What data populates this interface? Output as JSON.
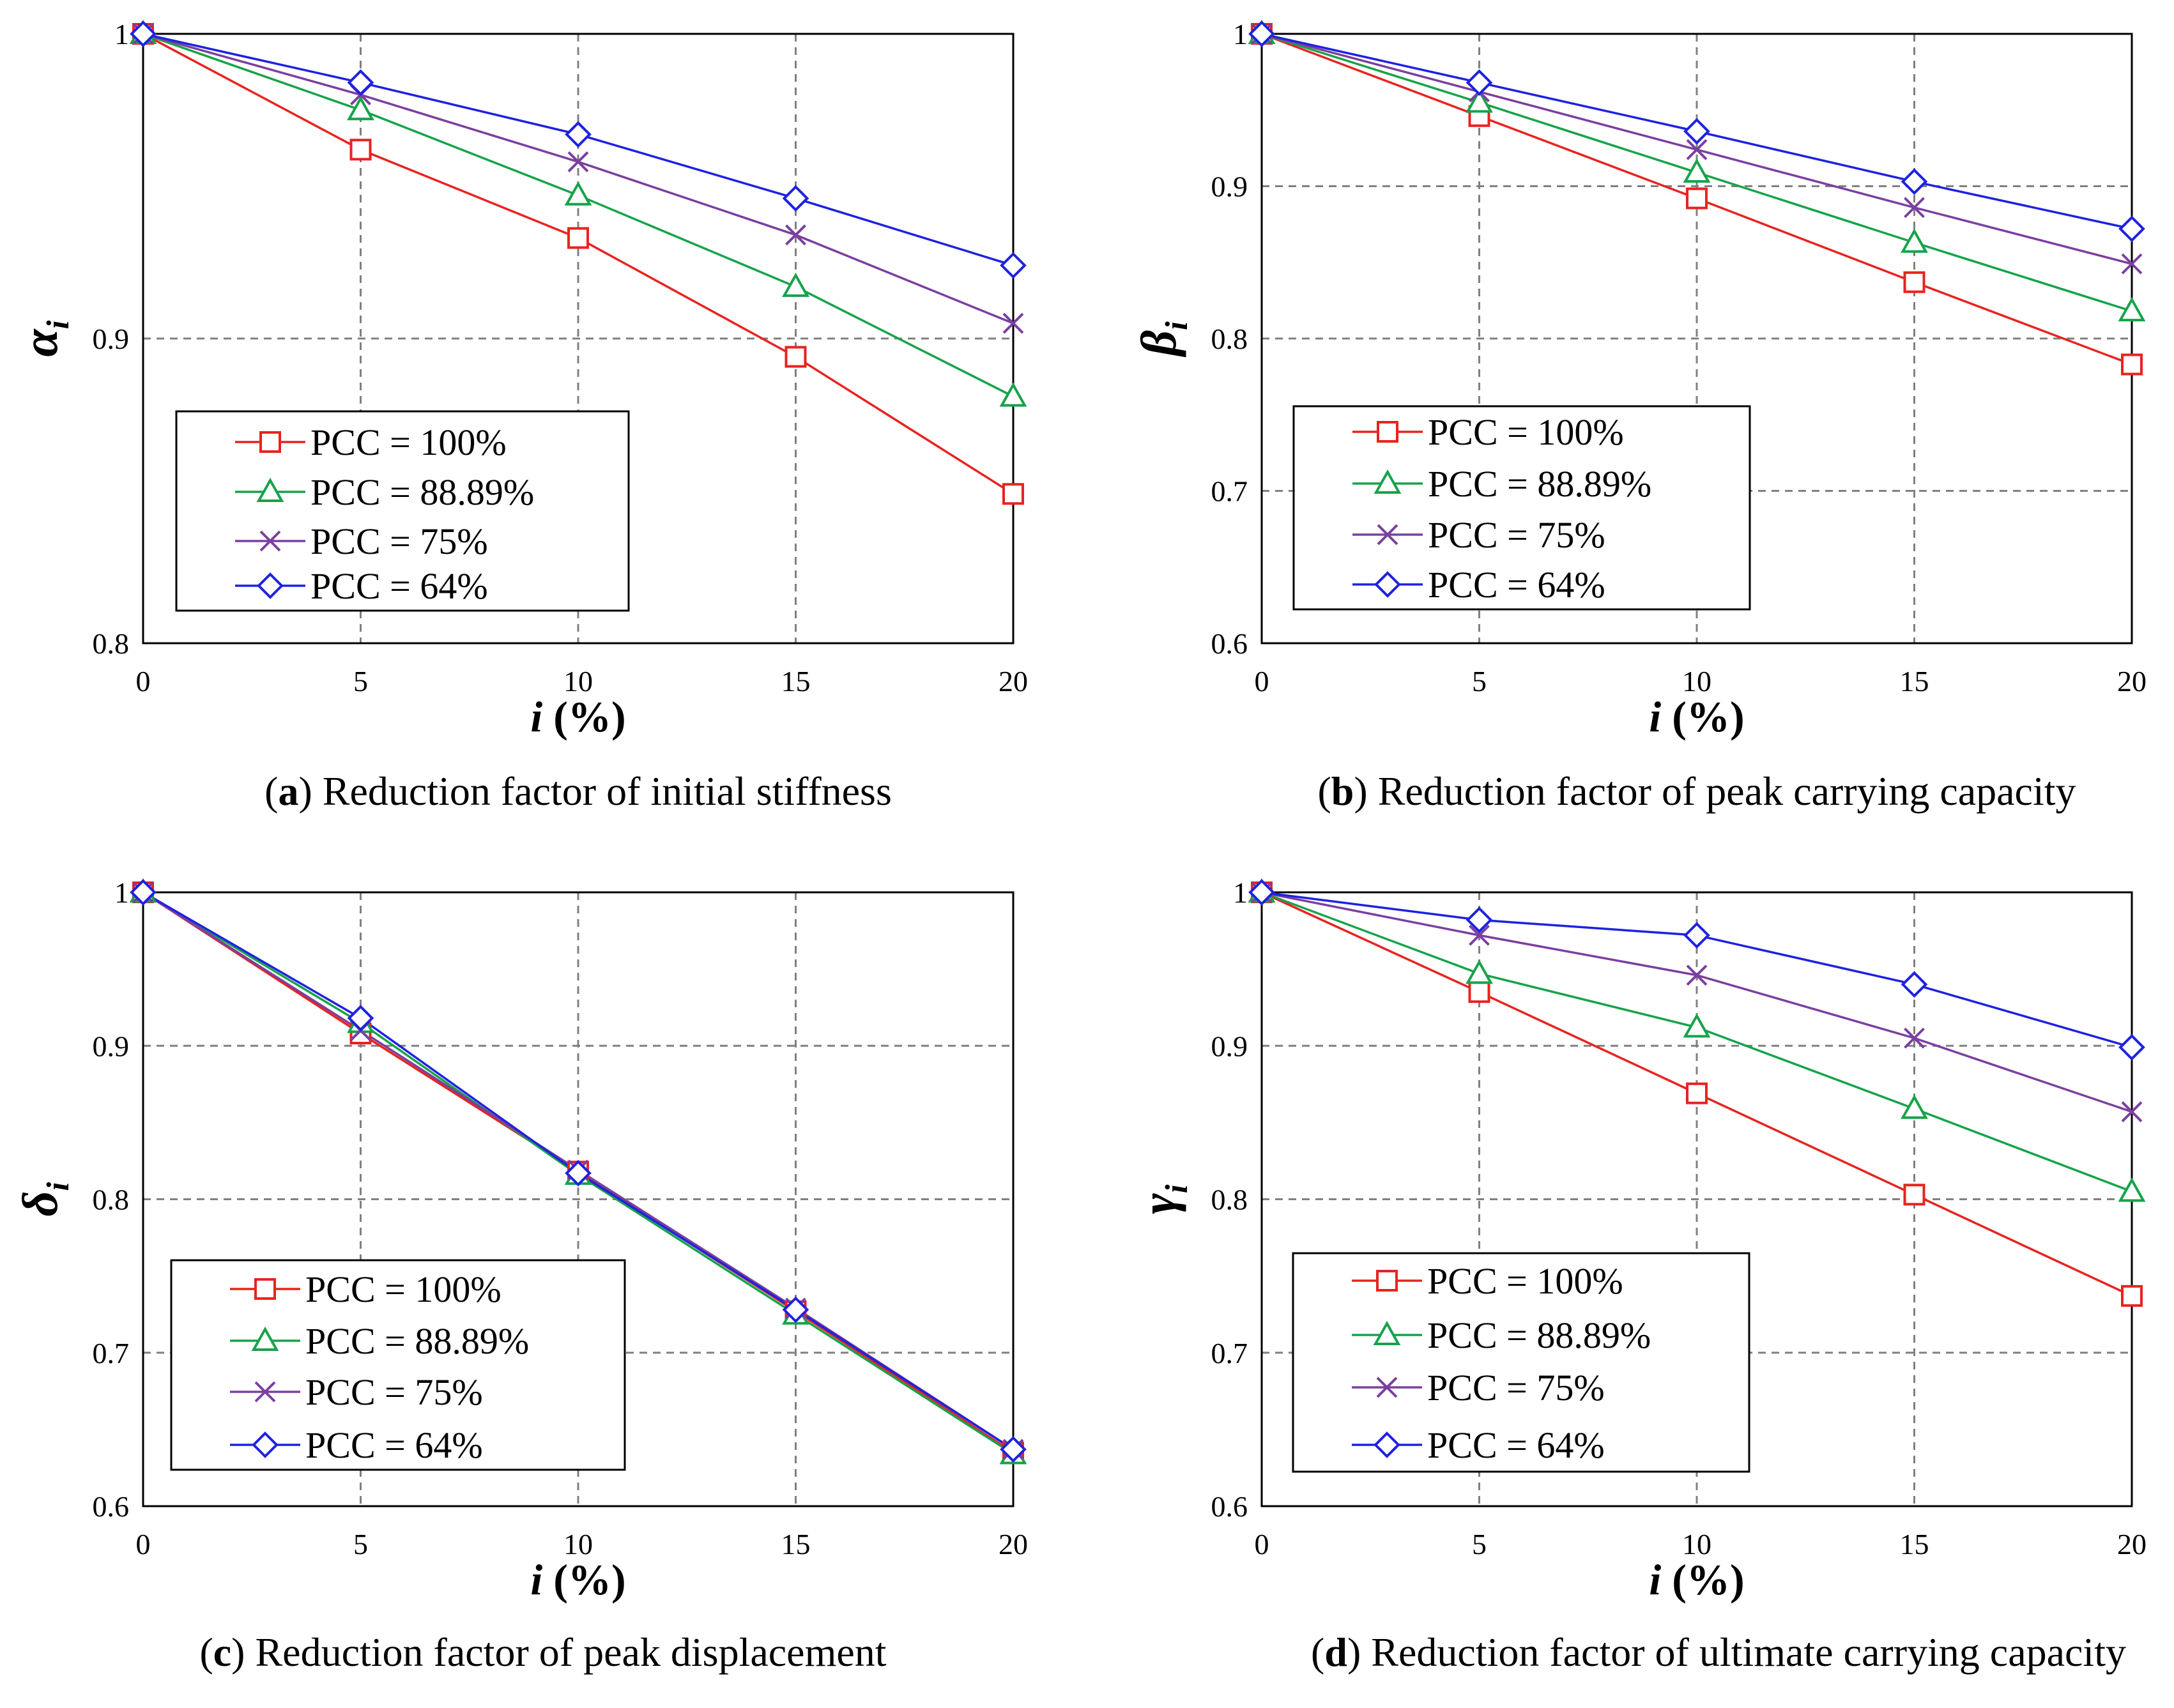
{
  "chart_data": [
    {
      "type": "line",
      "panel": "a",
      "caption_letter": "a",
      "caption_text": " Reduction factor of initial stiffness",
      "ylabel_symbol": "α",
      "ylabel_sub": "i",
      "xlabel_var": "i",
      "xlabel_unit": " (%)",
      "x": [
        0,
        5,
        10,
        15,
        20
      ],
      "xlim": [
        0,
        20
      ],
      "ylim": [
        0.8,
        1.0
      ],
      "x_ticks": [
        "0",
        "5",
        "10",
        "15",
        "20"
      ],
      "y_ticks": [
        {
          "value": 0.8,
          "label": "0.8"
        },
        {
          "value": 0.9,
          "label": "0.9"
        },
        {
          "value": 1.0,
          "label": "1"
        }
      ],
      "series": [
        {
          "name": "PCC = 100%",
          "color": "#e8231f",
          "marker": "square",
          "values": [
            1.0,
            0.962,
            0.933,
            0.894,
            0.849
          ]
        },
        {
          "name": "PCC = 88.89%",
          "color": "#16a34a",
          "marker": "triangle",
          "values": [
            1.0,
            0.975,
            0.947,
            0.917,
            0.881
          ]
        },
        {
          "name": "PCC = 75%",
          "color": "#7b3fa0",
          "marker": "cross",
          "values": [
            1.0,
            0.98,
            0.958,
            0.934,
            0.905
          ]
        },
        {
          "name": "PCC = 64%",
          "color": "#1e22e0",
          "marker": "diamond",
          "values": [
            1.0,
            0.984,
            0.967,
            0.946,
            0.924
          ]
        }
      ]
    },
    {
      "type": "line",
      "panel": "b",
      "caption_letter": "b",
      "caption_text": " Reduction factor of peak carrying capacity",
      "ylabel_symbol": "β",
      "ylabel_sub": "i",
      "xlabel_var": "i",
      "xlabel_unit": " (%)",
      "x": [
        0,
        5,
        10,
        15,
        20
      ],
      "xlim": [
        0,
        20
      ],
      "ylim": [
        0.6,
        1.0
      ],
      "x_ticks": [
        "0",
        "5",
        "10",
        "15",
        "20"
      ],
      "y_ticks": [
        {
          "value": 0.6,
          "label": "0.6"
        },
        {
          "value": 0.7,
          "label": "0.7"
        },
        {
          "value": 0.8,
          "label": "0.8"
        },
        {
          "value": 0.9,
          "label": "0.9"
        },
        {
          "value": 1.0,
          "label": "1"
        }
      ],
      "series": [
        {
          "name": "PCC = 100%",
          "color": "#e8231f",
          "marker": "square",
          "values": [
            1.0,
            0.946,
            0.892,
            0.837,
            0.783
          ]
        },
        {
          "name": "PCC = 88.89%",
          "color": "#16a34a",
          "marker": "triangle",
          "values": [
            1.0,
            0.955,
            0.909,
            0.863,
            0.818
          ]
        },
        {
          "name": "PCC = 75%",
          "color": "#7b3fa0",
          "marker": "cross",
          "values": [
            1.0,
            0.962,
            0.924,
            0.886,
            0.849
          ]
        },
        {
          "name": "PCC = 64%",
          "color": "#1e22e0",
          "marker": "diamond",
          "values": [
            1.0,
            0.968,
            0.936,
            0.903,
            0.872
          ]
        }
      ]
    },
    {
      "type": "line",
      "panel": "c",
      "caption_letter": "c",
      "caption_text": " Reduction factor of peak displacement",
      "ylabel_symbol": "δ",
      "ylabel_sub": "i",
      "xlabel_var": "i",
      "xlabel_unit": " (%)",
      "x": [
        0,
        5,
        10,
        15,
        20
      ],
      "xlim": [
        0,
        20
      ],
      "ylim": [
        0.6,
        1.0
      ],
      "x_ticks": [
        "0",
        "5",
        "10",
        "15",
        "20"
      ],
      "y_ticks": [
        {
          "value": 0.6,
          "label": "0.6"
        },
        {
          "value": 0.7,
          "label": "0.7"
        },
        {
          "value": 0.8,
          "label": "0.8"
        },
        {
          "value": 0.9,
          "label": "0.9"
        },
        {
          "value": 1.0,
          "label": "1"
        }
      ],
      "series": [
        {
          "name": "PCC = 100%",
          "color": "#e8231f",
          "marker": "square",
          "values": [
            1.0,
            0.908,
            0.818,
            0.727,
            0.635
          ]
        },
        {
          "name": "PCC = 88.89%",
          "color": "#16a34a",
          "marker": "triangle",
          "values": [
            1.0,
            0.915,
            0.816,
            0.725,
            0.634
          ]
        },
        {
          "name": "PCC = 75%",
          "color": "#7b3fa0",
          "marker": "cross",
          "values": [
            1.0,
            0.91,
            0.819,
            0.729,
            0.637
          ]
        },
        {
          "name": "PCC = 64%",
          "color": "#1e22e0",
          "marker": "diamond",
          "values": [
            1.0,
            0.918,
            0.817,
            0.728,
            0.637
          ]
        }
      ]
    },
    {
      "type": "line",
      "panel": "d",
      "caption_letter": "d",
      "caption_text": " Reduction factor of ultimate carrying capacity",
      "ylabel_symbol": "γ",
      "ylabel_sub": "i",
      "xlabel_var": "i",
      "xlabel_unit": " (%)",
      "x": [
        0,
        5,
        10,
        15,
        20
      ],
      "xlim": [
        0,
        20
      ],
      "ylim": [
        0.6,
        1.0
      ],
      "x_ticks": [
        "0",
        "5",
        "10",
        "15",
        "20"
      ],
      "y_ticks": [
        {
          "value": 0.6,
          "label": "0.6"
        },
        {
          "value": 0.7,
          "label": "0.7"
        },
        {
          "value": 0.8,
          "label": "0.8"
        },
        {
          "value": 0.9,
          "label": "0.9"
        },
        {
          "value": 1.0,
          "label": "1"
        }
      ],
      "series": [
        {
          "name": "PCC = 100%",
          "color": "#e8231f",
          "marker": "square",
          "values": [
            1.0,
            0.935,
            0.869,
            0.803,
            0.737
          ]
        },
        {
          "name": "PCC = 88.89%",
          "color": "#16a34a",
          "marker": "triangle",
          "values": [
            1.0,
            0.947,
            0.912,
            0.859,
            0.805
          ]
        },
        {
          "name": "PCC = 75%",
          "color": "#7b3fa0",
          "marker": "cross",
          "values": [
            1.0,
            0.972,
            0.946,
            0.905,
            0.857
          ]
        },
        {
          "name": "PCC = 64%",
          "color": "#1e22e0",
          "marker": "diamond",
          "values": [
            1.0,
            0.982,
            0.972,
            0.94,
            0.899
          ]
        }
      ]
    }
  ]
}
